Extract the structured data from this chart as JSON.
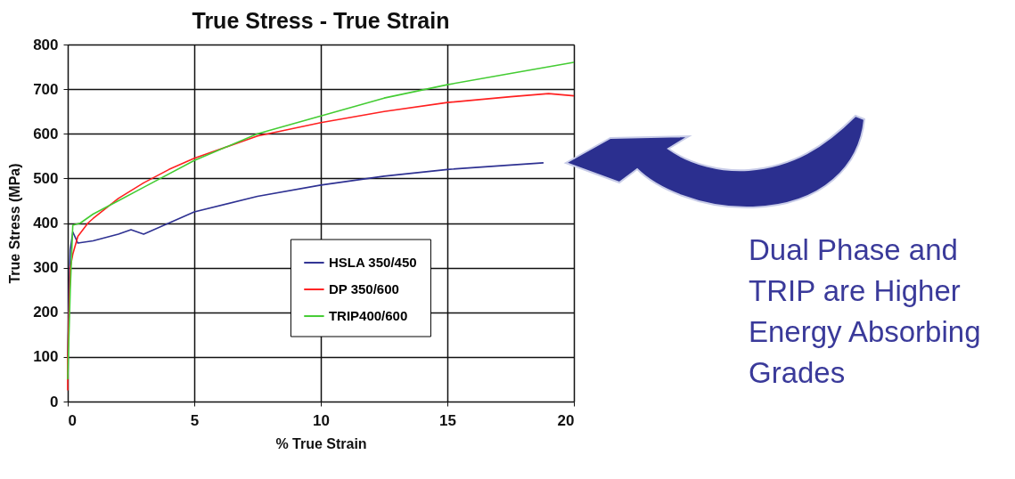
{
  "chart_data": {
    "type": "line",
    "title": "True Stress - True Strain",
    "xlabel": "% True Strain",
    "ylabel": "True Stress (MPa)",
    "xlim": [
      0,
      20
    ],
    "xticks": [
      0,
      5,
      10,
      15,
      20
    ],
    "ylim": [
      0,
      800
    ],
    "yticks": [
      0,
      100,
      200,
      300,
      400,
      500,
      600,
      700,
      800
    ],
    "grid": true,
    "legend": "bottom right",
    "line_style": "solid",
    "marker": "none",
    "annotations": [
      "Dual Phase and TRIP are Higher Energy Absorbing Grades"
    ],
    "series": [
      {
        "name": "HSLA 350/450",
        "color": "#2e3192",
        "x": [
          0,
          0.05,
          0.1,
          0.2,
          0.4,
          1,
          2,
          2.5,
          3,
          4,
          5,
          7.5,
          10,
          12.5,
          15,
          17.5,
          18.8
        ],
        "values": [
          100,
          250,
          340,
          380,
          355,
          360,
          375,
          385,
          375,
          400,
          425,
          460,
          485,
          505,
          520,
          530,
          535
        ]
      },
      {
        "name": "DP 350/600",
        "color": "#ff2020",
        "x": [
          0,
          0,
          0.1,
          0.2,
          0.4,
          0.8,
          1,
          2,
          3,
          4,
          5,
          7.5,
          10,
          12.5,
          15,
          17.5,
          19,
          20
        ],
        "values": [
          25,
          100,
          300,
          330,
          370,
          400,
          410,
          455,
          490,
          520,
          545,
          595,
          625,
          650,
          670,
          683,
          690,
          685
        ]
      },
      {
        "name": "TRIP400/600",
        "color": "#44cc33",
        "x": [
          0,
          0.1,
          0.2,
          0.5,
          1,
          2,
          3,
          5,
          7.5,
          10,
          12.5,
          15,
          17.5,
          20
        ],
        "values": [
          50,
          250,
          395,
          400,
          420,
          450,
          480,
          540,
          600,
          640,
          680,
          710,
          735,
          760
        ]
      }
    ]
  }
}
